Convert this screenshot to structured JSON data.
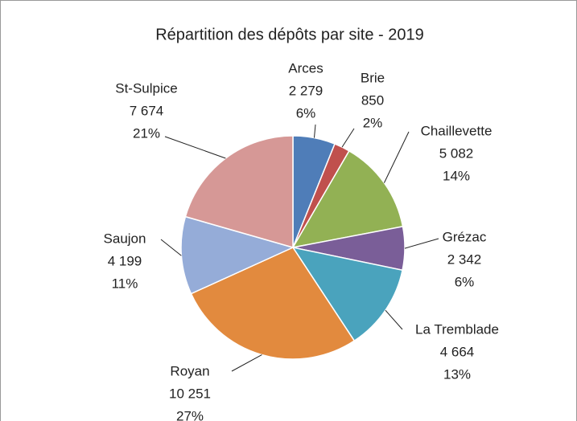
{
  "chart_data": {
    "type": "pie",
    "title": "Répartition des dépôts par site - 2019",
    "categories": [
      "Arces",
      "Brie",
      "Chaillevette",
      "Grézac",
      "La Tremblade",
      "Royan",
      "Saujon",
      "St-Sulpice"
    ],
    "values": [
      2279,
      850,
      5082,
      2342,
      4664,
      10251,
      4199,
      7674
    ],
    "value_labels": [
      "2 279",
      "850",
      "5 082",
      "2 342",
      "4 664",
      "10 251",
      "4 199",
      "7 674"
    ],
    "percent_labels": [
      "6%",
      "2%",
      "14%",
      "6%",
      "13%",
      "27%",
      "11%",
      "21%"
    ],
    "colors": [
      "#4f7db8",
      "#c0504d",
      "#92b154",
      "#7a5e98",
      "#4aa3bd",
      "#e28a3e",
      "#95acd8",
      "#d69896"
    ]
  }
}
